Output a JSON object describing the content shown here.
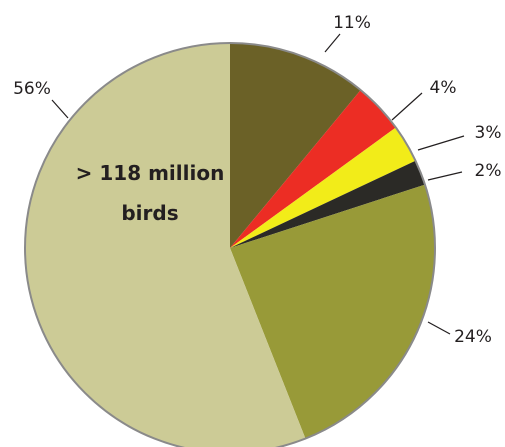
{
  "chart_data": {
    "type": "pie",
    "title": "",
    "center_label": [
      "> 118 million",
      "birds"
    ],
    "slices": [
      {
        "label": "11%",
        "value": 11,
        "color": "#6b6127"
      },
      {
        "label": "4%",
        "value": 4,
        "color": "#ec2d24"
      },
      {
        "label": "3%",
        "value": 3,
        "color": "#f2ec19"
      },
      {
        "label": "2%",
        "value": 2,
        "color": "#2b2a26"
      },
      {
        "label": "24%",
        "value": 24,
        "color": "#989a38"
      },
      {
        "label": "56%",
        "value": 56,
        "color": "#cccb96"
      }
    ],
    "start_angle_deg": 0,
    "direction": "clockwise",
    "outline_color": "#8a8a8a"
  }
}
